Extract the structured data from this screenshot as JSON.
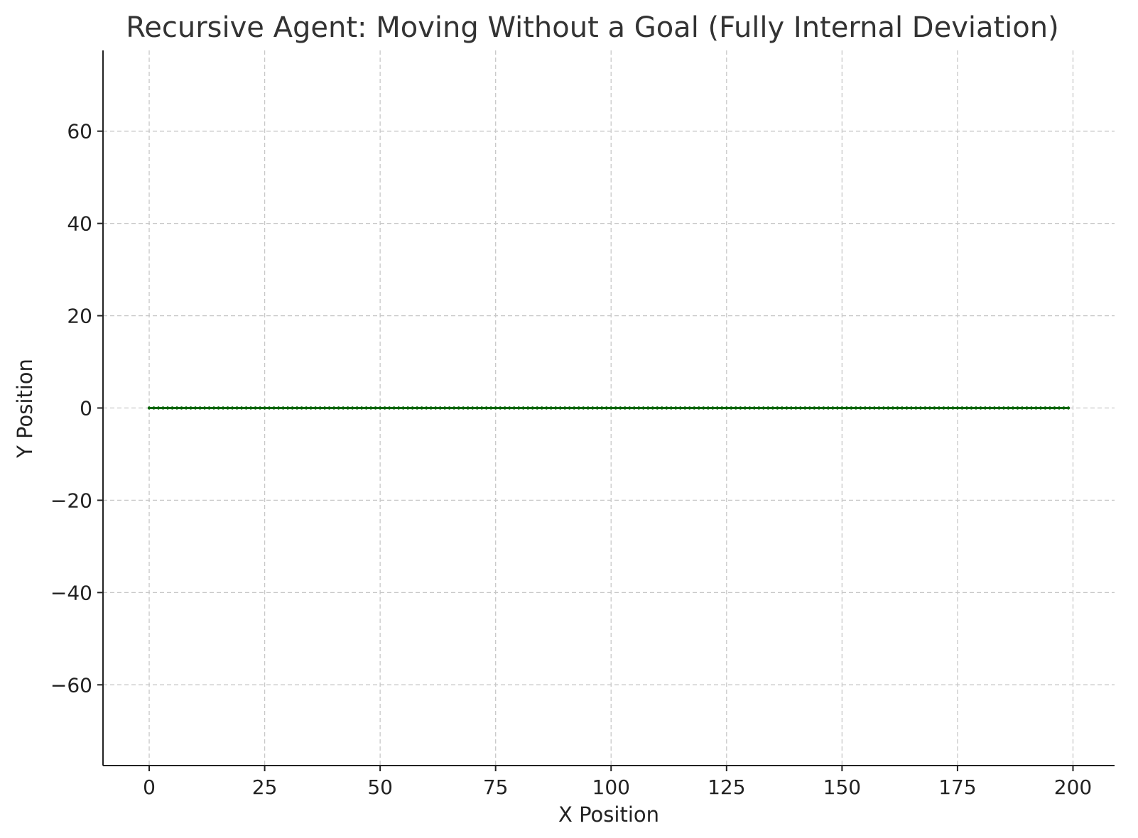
{
  "chart_data": {
    "type": "line",
    "title": "Recursive Agent: Moving Without a Goal (Fully Internal Deviation)",
    "xlabel": "X Position",
    "ylabel": "Y Position",
    "xlim": [
      -10,
      209
    ],
    "ylim": [
      -77.5,
      77.5
    ],
    "xticks": [
      0,
      25,
      50,
      75,
      100,
      125,
      150,
      175,
      200
    ],
    "yticks": [
      -60,
      -40,
      -20,
      0,
      20,
      40,
      60
    ],
    "xtick_labels": [
      "0",
      "25",
      "50",
      "75",
      "100",
      "125",
      "150",
      "175",
      "200"
    ],
    "ytick_labels": [
      "−60",
      "−40",
      "−20",
      "0",
      "20",
      "40",
      "60"
    ],
    "grid": true,
    "series": [
      {
        "color": "#006400",
        "marker": "dot",
        "x_start": 0,
        "x_end": 199,
        "x_step": 1,
        "y_constant": 0
      }
    ]
  }
}
